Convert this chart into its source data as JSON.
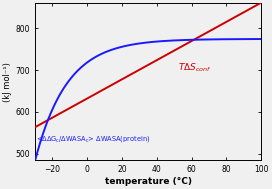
{
  "x_min": -30,
  "x_max": 100,
  "y_min": 485,
  "y_max": 860,
  "yticks": [
    500,
    600,
    700,
    800
  ],
  "xticks": [
    -20,
    0,
    20,
    40,
    60,
    80,
    100
  ],
  "xlabel": "temperature (°C)",
  "ylabel": "(kJ mol⁻¹)",
  "red_color": "#cc0000",
  "blue_color": "#1a1aff",
  "bg_color": "#f0f0f0",
  "line_width": 1.4,
  "red_x0": -30,
  "red_y0": 563,
  "red_x1": 100,
  "red_y1": 862,
  "blue_A": 775,
  "blue_B": 295,
  "blue_k": 0.055,
  "blue_x0": -30,
  "ann_red_x": 52,
  "ann_red_y": 700,
  "ann_blue_x": -29,
  "ann_blue_y": 532,
  "ann_red_fontsize": 6.5,
  "ann_blue_fontsize": 4.8,
  "xlabel_fontsize": 6.5,
  "ylabel_fontsize": 6.0,
  "tick_fontsize": 5.5
}
